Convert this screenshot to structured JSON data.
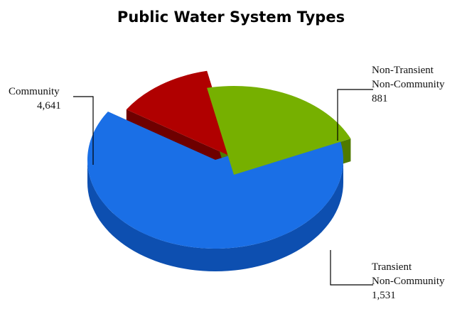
{
  "chart_data": {
    "type": "pie",
    "title": "Public Water System Types",
    "three_d": true,
    "exploded": true,
    "legend": "none",
    "slices": [
      {
        "name": "Community",
        "value": 4641,
        "value_label": "4,641",
        "color": "#1a6fe6",
        "side_color": "#0d4fb0",
        "label_lines": [
          "Community",
          "4,641"
        ]
      },
      {
        "name": "Non-Transient Non-Community",
        "value": 881,
        "value_label": "881",
        "color": "#b00000",
        "side_color": "#6e0000",
        "label_lines": [
          "Non-Transient",
          "Non-Community",
          "881"
        ]
      },
      {
        "name": "Transient Non-Community",
        "value": 1531,
        "value_label": "1,531",
        "color": "#76b000",
        "side_color": "#4f7a00",
        "label_lines": [
          "Transient",
          "Non-Community",
          "1,531"
        ]
      }
    ]
  }
}
